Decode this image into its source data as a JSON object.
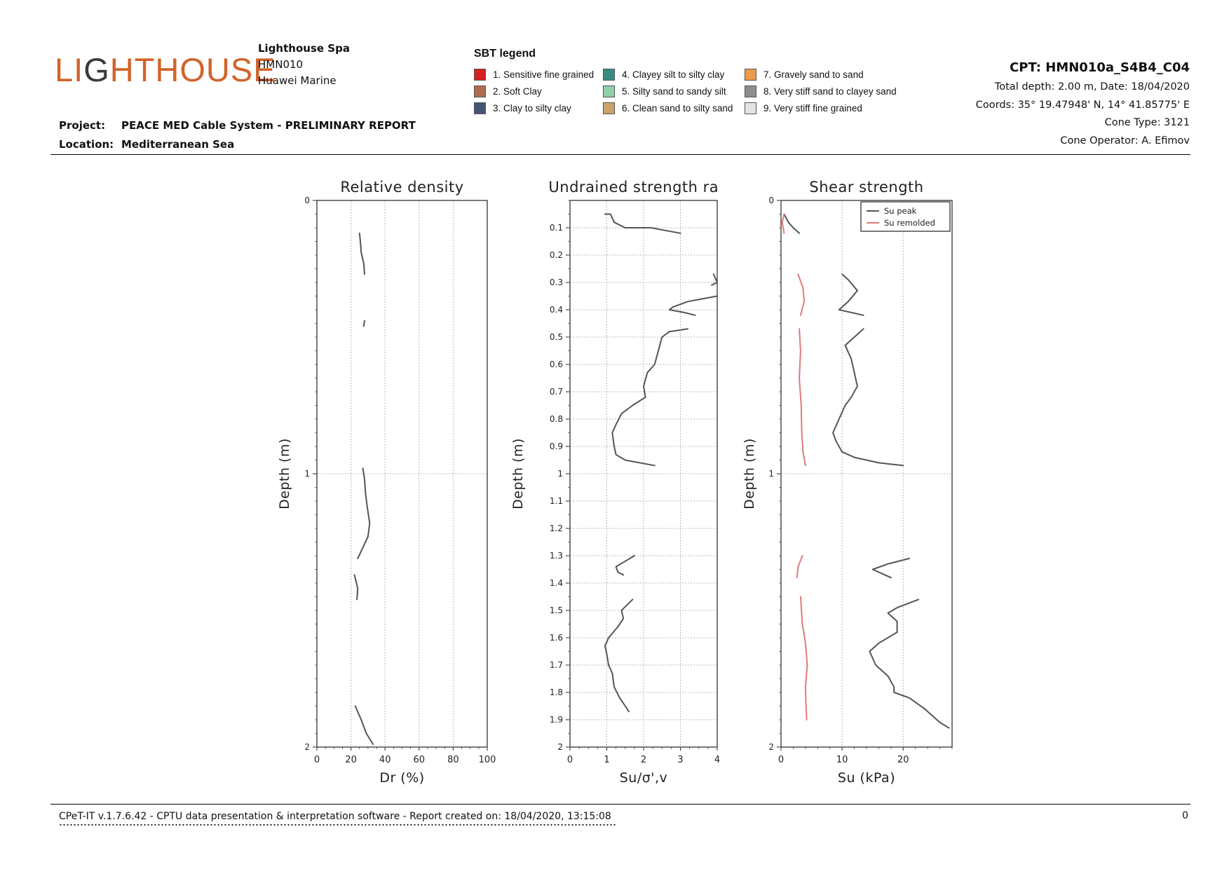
{
  "header": {
    "logo_text": "LIGHTHOUSE",
    "company_name": "Lighthouse Spa",
    "company_code": "HMN010",
    "client": "Huawei Marine",
    "project_label": "Project:",
    "project_value": "PEACE MED Cable System - PRELIMINARY REPORT",
    "location_label": "Location:",
    "location_value": "Mediterranean Sea"
  },
  "sbt_legend": {
    "title": "SBT legend",
    "items": [
      {
        "label": "1. Sensitive fine grained",
        "color": "#d62023"
      },
      {
        "label": "2. Soft Clay",
        "color": "#b06a4f"
      },
      {
        "label": "3. Clay to silty clay",
        "color": "#485474"
      },
      {
        "label": "4. Clayey silt to silty clay",
        "color": "#3b8a80"
      },
      {
        "label": "5. Silty sand to sandy silt",
        "color": "#8fcfa9"
      },
      {
        "label": "6. Clean sand to silty sand",
        "color": "#c9a56b"
      },
      {
        "label": "7. Gravely sand to sand",
        "color": "#ee9b4b"
      },
      {
        "label": "8. Very stiff sand to clayey sand",
        "color": "#8d8d8d"
      },
      {
        "label": "9. Very stiff fine grained",
        "color": "#e4e4e4"
      }
    ]
  },
  "cpt_info": {
    "title": "CPT: HMN010a_S4B4_C04",
    "total_depth": "Total depth: 2.00 m, Date: 18/04/2020",
    "coords": "Coords: 35° 19.47948' N, 14° 41.85775' E",
    "cone_type": "Cone Type: 3121",
    "cone_operator": "Cone Operator: A. Efimov"
  },
  "footer": {
    "software": "CPeT-IT v.1.7.6.42 - CPTU data presentation & interpretation software - Report created on: 18/04/2020, 13:15:08",
    "page_number": "0"
  },
  "chart_data": [
    {
      "type": "line",
      "title": "Relative density",
      "xlabel": "Dr (%)",
      "ylabel": "Depth (m)",
      "xlim": [
        0,
        100
      ],
      "ylim": [
        0,
        2
      ],
      "x_ticks": [
        "0",
        "20",
        "40",
        "60",
        "80",
        "100"
      ],
      "y_ticks": [
        "0",
        "1",
        "2"
      ],
      "inverted_y": true,
      "grid": true,
      "series": [
        {
          "color": "#555555",
          "segments": [
            [
              [
                25,
                0.12
              ],
              [
                25.5,
                0.15
              ],
              [
                26,
                0.19
              ],
              [
                27.5,
                0.23
              ],
              [
                28,
                0.27
              ]
            ],
            [
              [
                28,
                0.44
              ],
              [
                27.5,
                0.46
              ]
            ],
            [
              [
                27,
                0.98
              ],
              [
                28,
                1.02
              ],
              [
                28.5,
                1.07
              ],
              [
                29.5,
                1.12
              ],
              [
                31,
                1.18
              ],
              [
                30,
                1.23
              ],
              [
                27,
                1.27
              ],
              [
                24,
                1.31
              ]
            ],
            [
              [
                22,
                1.37
              ],
              [
                24,
                1.42
              ],
              [
                23.5,
                1.46
              ]
            ],
            [
              [
                22.5,
                1.85
              ],
              [
                26,
                1.9
              ],
              [
                29,
                1.95
              ],
              [
                33,
                1.99
              ]
            ]
          ]
        }
      ]
    },
    {
      "type": "line",
      "title": "Undrained strength ratio",
      "xlabel": "Su/σ',v",
      "ylabel": "Depth (m)",
      "xlim": [
        0,
        4
      ],
      "ylim": [
        0,
        2
      ],
      "x_ticks": [
        "0",
        "1",
        "2",
        "3",
        "4"
      ],
      "y_ticks": [
        "0.1",
        "0.2",
        "0.3",
        "0.4",
        "0.5",
        "0.6",
        "0.7",
        "0.8",
        "0.9",
        "1",
        "1.1",
        "1.2",
        "1.3",
        "1.4",
        "1.5",
        "1.6",
        "1.7",
        "1.8",
        "1.9",
        "2"
      ],
      "inverted_y": true,
      "grid": true,
      "series": [
        {
          "color": "#555555",
          "segments": [
            [
              [
                0.95,
                0.05
              ],
              [
                1.1,
                0.05
              ],
              [
                1.2,
                0.08
              ],
              [
                1.5,
                0.1
              ],
              [
                2.2,
                0.1
              ],
              [
                3.0,
                0.12
              ]
            ],
            [
              [
                3.9,
                0.27
              ],
              [
                4.0,
                0.3
              ],
              [
                3.85,
                0.31
              ]
            ],
            [
              [
                4.0,
                0.35
              ],
              [
                3.6,
                0.36
              ],
              [
                3.2,
                0.37
              ],
              [
                2.8,
                0.39
              ],
              [
                2.7,
                0.4
              ],
              [
                3.1,
                0.41
              ],
              [
                3.4,
                0.42
              ]
            ],
            [
              [
                3.2,
                0.47
              ],
              [
                2.7,
                0.48
              ],
              [
                2.5,
                0.5
              ],
              [
                2.4,
                0.55
              ],
              [
                2.3,
                0.6
              ],
              [
                2.1,
                0.63
              ],
              [
                2.0,
                0.68
              ],
              [
                2.05,
                0.72
              ],
              [
                1.7,
                0.75
              ],
              [
                1.4,
                0.78
              ],
              [
                1.25,
                0.82
              ],
              [
                1.15,
                0.85
              ],
              [
                1.2,
                0.9
              ],
              [
                1.25,
                0.93
              ],
              [
                1.5,
                0.95
              ],
              [
                2.3,
                0.97
              ]
            ],
            [
              [
                1.75,
                1.3
              ],
              [
                1.5,
                1.32
              ],
              [
                1.25,
                1.34
              ],
              [
                1.3,
                1.36
              ],
              [
                1.45,
                1.37
              ]
            ],
            [
              [
                1.7,
                1.46
              ],
              [
                1.55,
                1.48
              ],
              [
                1.4,
                1.5
              ],
              [
                1.45,
                1.53
              ],
              [
                1.3,
                1.56
              ],
              [
                1.05,
                1.6
              ],
              [
                0.95,
                1.63
              ],
              [
                1.0,
                1.66
              ],
              [
                1.05,
                1.7
              ],
              [
                1.15,
                1.73
              ],
              [
                1.2,
                1.78
              ],
              [
                1.35,
                1.82
              ],
              [
                1.5,
                1.85
              ],
              [
                1.6,
                1.87
              ]
            ]
          ]
        }
      ]
    },
    {
      "type": "line",
      "title": "Shear strength",
      "xlabel": "Su (kPa)",
      "ylabel": "Depth (m)",
      "xlim": [
        0,
        28
      ],
      "ylim": [
        0,
        2
      ],
      "x_ticks": [
        "0",
        "10",
        "20"
      ],
      "y_ticks": [
        "0",
        "1",
        "2"
      ],
      "inverted_y": true,
      "grid": true,
      "legend_position": "top-right",
      "series": [
        {
          "name": "Su peak",
          "color": "#555555",
          "segments": [
            [
              [
                0.5,
                0.05
              ],
              [
                1.2,
                0.08
              ],
              [
                2.0,
                0.1
              ],
              [
                3.0,
                0.12
              ]
            ],
            [
              [
                10,
                0.27
              ],
              [
                11,
                0.29
              ],
              [
                12.5,
                0.33
              ],
              [
                11,
                0.37
              ],
              [
                9.5,
                0.4
              ],
              [
                13.5,
                0.42
              ]
            ],
            [
              [
                13.5,
                0.47
              ],
              [
                12,
                0.5
              ],
              [
                10.5,
                0.53
              ],
              [
                11.5,
                0.58
              ],
              [
                12,
                0.63
              ],
              [
                12.5,
                0.68
              ],
              [
                11.5,
                0.72
              ],
              [
                10.5,
                0.75
              ],
              [
                9.5,
                0.8
              ],
              [
                8.5,
                0.85
              ],
              [
                9,
                0.88
              ],
              [
                10,
                0.92
              ],
              [
                12,
                0.94
              ],
              [
                16,
                0.96
              ],
              [
                20,
                0.97
              ]
            ],
            [
              [
                21,
                1.31
              ],
              [
                17.5,
                1.33
              ],
              [
                15,
                1.35
              ],
              [
                17,
                1.37
              ],
              [
                18,
                1.38
              ]
            ],
            [
              [
                22.5,
                1.46
              ],
              [
                19,
                1.49
              ],
              [
                17.5,
                1.51
              ],
              [
                19,
                1.54
              ],
              [
                19,
                1.58
              ],
              [
                16,
                1.62
              ],
              [
                14.5,
                1.65
              ],
              [
                15.5,
                1.7
              ],
              [
                17.5,
                1.74
              ],
              [
                18.5,
                1.78
              ],
              [
                18.5,
                1.8
              ],
              [
                21,
                1.82
              ],
              [
                23.5,
                1.86
              ],
              [
                26,
                1.91
              ],
              [
                27.5,
                1.93
              ]
            ]
          ]
        },
        {
          "name": "Su remolded",
          "color": "#e07a7a",
          "segments": [
            [
              [
                0.5,
                0.05
              ],
              [
                0.2,
                0.08
              ],
              [
                0.5,
                0.12
              ]
            ],
            [
              [
                2.8,
                0.27
              ],
              [
                3.6,
                0.32
              ],
              [
                3.8,
                0.37
              ],
              [
                3.2,
                0.42
              ]
            ],
            [
              [
                3.0,
                0.47
              ],
              [
                3.2,
                0.55
              ],
              [
                3.0,
                0.65
              ],
              [
                3.3,
                0.75
              ],
              [
                3.4,
                0.85
              ],
              [
                3.6,
                0.92
              ],
              [
                4.0,
                0.97
              ]
            ],
            [
              [
                3.5,
                1.3
              ],
              [
                2.8,
                1.34
              ],
              [
                2.6,
                1.38
              ]
            ],
            [
              [
                3.2,
                1.45
              ],
              [
                3.5,
                1.55
              ],
              [
                4.0,
                1.62
              ],
              [
                4.3,
                1.7
              ],
              [
                4.0,
                1.78
              ],
              [
                4.1,
                1.85
              ],
              [
                4.2,
                1.9
              ]
            ]
          ]
        }
      ]
    }
  ]
}
